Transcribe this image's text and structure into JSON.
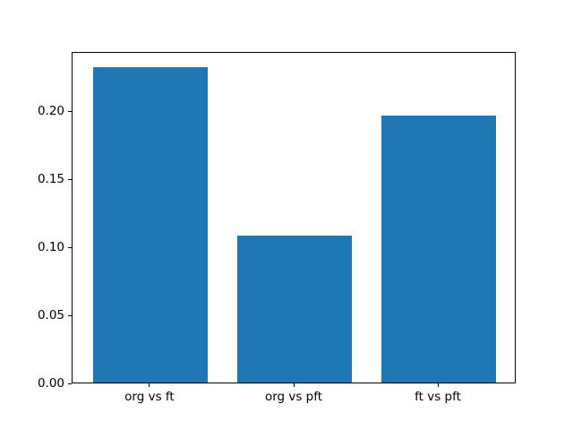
{
  "chart_data": {
    "type": "bar",
    "categories": [
      "org vs ft",
      "org vs pft",
      "ft vs pft"
    ],
    "values": [
      0.232,
      0.108,
      0.196
    ],
    "title": "",
    "xlabel": "",
    "ylabel": "",
    "ylim": [
      0,
      0.2436
    ],
    "xlim": [
      -0.54,
      2.54
    ],
    "yticks": [
      0.0,
      0.05,
      0.1,
      0.15,
      0.2
    ],
    "ytick_labels": [
      "0.00",
      "0.05",
      "0.10",
      "0.15",
      "0.20"
    ],
    "bar_width": 0.8,
    "bar_color": "#1f77b4",
    "axis_color": "#000000",
    "background_color": "#ffffff",
    "grid": false,
    "legend": false
  }
}
